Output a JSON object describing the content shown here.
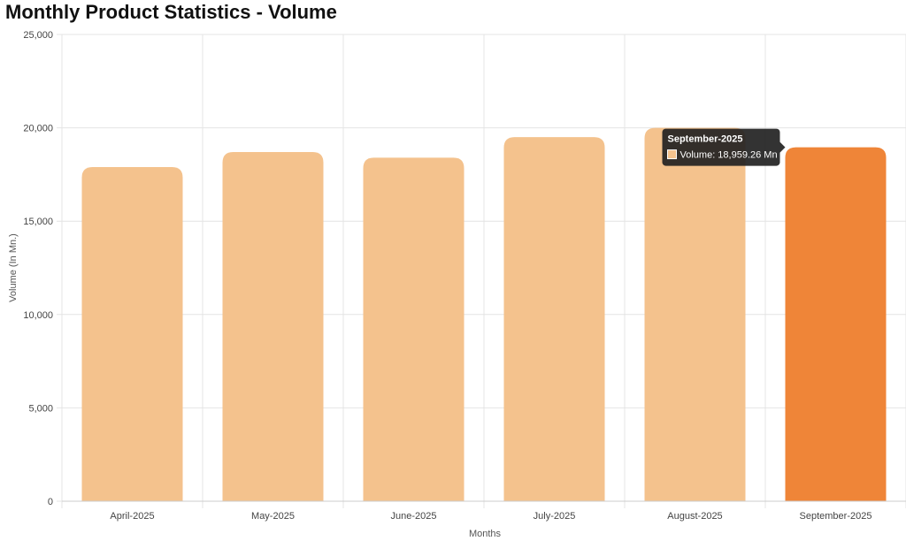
{
  "chart_data": {
    "type": "bar",
    "title": "Monthly Product Statistics - Volume",
    "xlabel": "Months",
    "ylabel": "Volume (In Mn.)",
    "categories": [
      "April-2025",
      "May-2025",
      "June-2025",
      "July-2025",
      "August-2025",
      "September-2025"
    ],
    "series": [
      {
        "name": "Volume",
        "values": [
          17900,
          18700,
          18400,
          19500,
          20000,
          18959.26
        ]
      }
    ],
    "ylim": [
      0,
      25000
    ],
    "yticks": [
      0,
      5000,
      10000,
      15000,
      20000,
      25000
    ],
    "ytick_labels": [
      "0",
      "5,000",
      "10,000",
      "15,000",
      "20,000",
      "25,000"
    ],
    "grid": true,
    "highlighted_index": 5,
    "colors": {
      "bar": "#f4c28d",
      "bar_highlight": "#ef8538",
      "grid": "#e4e4e4",
      "tooltip_bg": "#222222"
    },
    "tooltip": {
      "title": "September-2025",
      "label": "Volume: 18,959.26 Mn",
      "swatch_color": "#f4c28d"
    }
  }
}
